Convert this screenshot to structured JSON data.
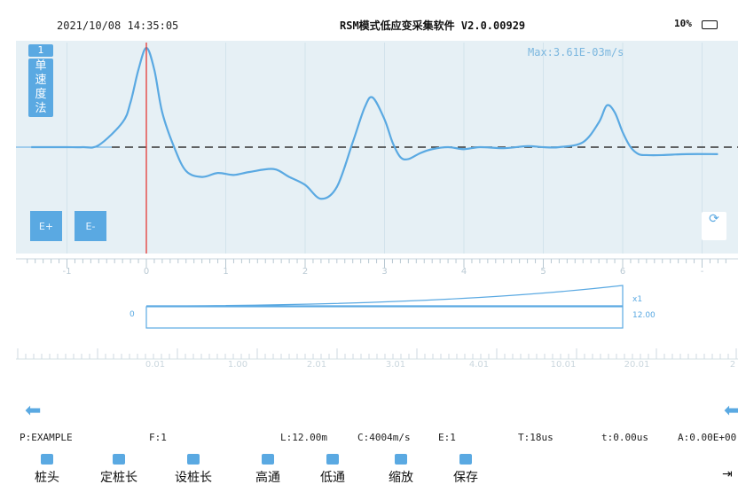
{
  "status": {
    "datetime": "2021/10/08 14:35:05",
    "title": "RSM模式低应变采集软件 V2.0.00929",
    "battery": "10%"
  },
  "wave_panel": {
    "index_tag": "1",
    "method_chars": [
      "单",
      "速",
      "度",
      "法"
    ],
    "max_label": "Max:3.61E-03m/s",
    "e_plus": "E+",
    "e_minus": "E-",
    "x_ticks": [
      "-1",
      "0",
      "1",
      "2",
      "3",
      "4",
      "5",
      "6",
      "-"
    ]
  },
  "lower_panel": {
    "zero": "0",
    "x1": "x1",
    "length_value": "12.00",
    "ruler_labels": [
      "0.01",
      "1.00",
      "2.01",
      "3.01",
      "4.01",
      "10.01",
      "20.01",
      "2"
    ]
  },
  "info": {
    "project": "P:EXAMPLE",
    "file": "F:1",
    "length": "L:12.00m",
    "speed": "C:4004m/s",
    "exp": "E:1",
    "period": "T:18us",
    "time": "t:0.00us",
    "amp": "A:0.00E+00"
  },
  "toolbar": {
    "items": [
      {
        "label": "桩头"
      },
      {
        "label": "定桩长"
      },
      {
        "label": "设桩长"
      },
      {
        "label": "高通"
      },
      {
        "label": "低通"
      },
      {
        "label": "缩放"
      },
      {
        "label": "保存"
      }
    ]
  },
  "colors": {
    "accent": "#5aa9e2",
    "wave_bg": "#e6f0f5",
    "cursor": "#e53935"
  },
  "icons": {
    "left_arrow": "arrow-left-icon",
    "right_arrow": "arrow-right-icon",
    "refresh": "refresh-icon",
    "exit": "exit-icon",
    "battery": "battery-icon"
  },
  "chart_data": {
    "type": "line",
    "x": [
      -1.45,
      -1.2,
      -1.0,
      -0.8,
      -0.6,
      -0.3,
      -0.2,
      -0.1,
      0.0,
      0.1,
      0.2,
      0.35,
      0.5,
      0.7,
      0.9,
      1.1,
      1.3,
      1.6,
      1.8,
      2.0,
      2.2,
      2.4,
      2.6,
      2.75,
      2.85,
      3.0,
      3.1,
      3.2,
      3.3,
      3.45,
      3.6,
      3.8,
      4.0,
      4.2,
      4.5,
      4.8,
      5.0,
      5.2,
      5.5,
      5.7,
      5.8,
      5.9,
      6.0,
      6.1,
      6.2,
      6.3,
      6.5,
      6.8,
      7.2
    ],
    "y": [
      0,
      0,
      0,
      0,
      0.02,
      0.25,
      0.45,
      0.78,
      1.0,
      0.78,
      0.35,
      0.0,
      -0.24,
      -0.3,
      -0.26,
      -0.28,
      -0.25,
      -0.22,
      -0.3,
      -0.38,
      -0.52,
      -0.4,
      0.05,
      0.4,
      0.5,
      0.28,
      0.05,
      -0.1,
      -0.12,
      -0.06,
      -0.02,
      0.0,
      -0.02,
      0.0,
      -0.01,
      0.01,
      0.0,
      0.0,
      0.05,
      0.25,
      0.42,
      0.35,
      0.15,
      0.0,
      -0.07,
      -0.08,
      -0.08,
      -0.07,
      -0.07
    ],
    "max_label": "Max:3.61E-03m/s",
    "x_tick_labels": [
      "-1",
      "0",
      "1",
      "2",
      "3",
      "4",
      "5",
      "6"
    ]
  }
}
